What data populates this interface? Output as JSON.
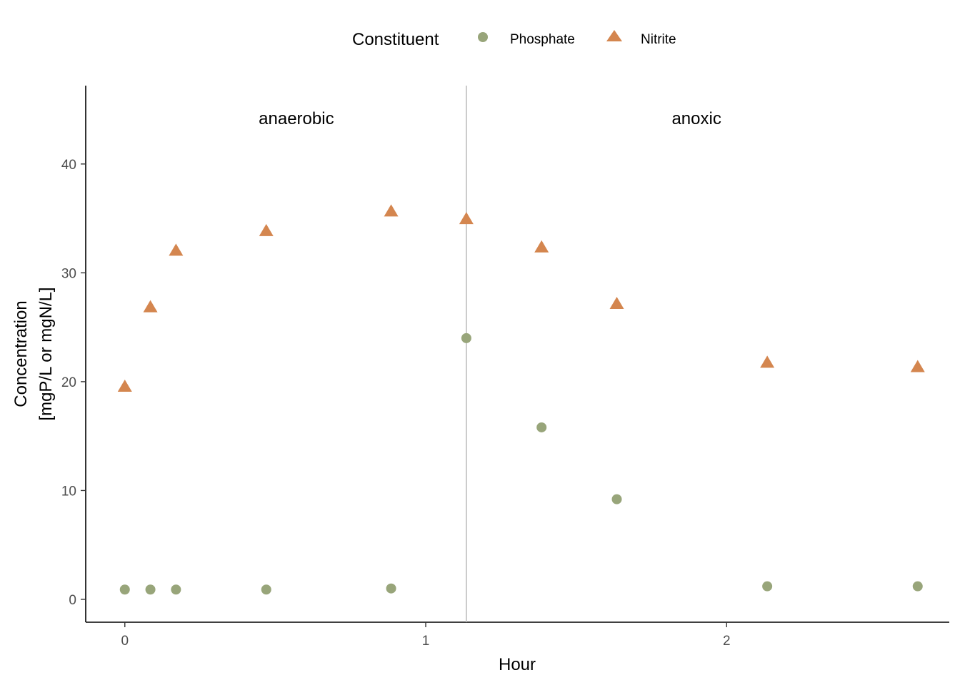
{
  "chart_data": {
    "type": "scatter",
    "title": "",
    "xlabel": "Hour",
    "ylabel_lines": [
      "Concentration",
      "[mgP/L or mgN/L]"
    ],
    "xlim": [
      -0.13,
      2.74
    ],
    "ylim": [
      -2.1,
      47.2
    ],
    "x_ticks": [
      0,
      1,
      2
    ],
    "y_ticks": [
      0,
      10,
      20,
      30,
      40
    ],
    "grid": false,
    "legend": {
      "title": "Constituent",
      "position": "top"
    },
    "vline": {
      "x": 1.135
    },
    "annotations": [
      {
        "text": "anaerobic",
        "x": 0.57,
        "y": 44.2
      },
      {
        "text": "anoxic",
        "x": 1.9,
        "y": 44.2
      }
    ],
    "series": [
      {
        "name": "Phosphate",
        "marker": "circle",
        "color": "#98a57a",
        "x": [
          0,
          0.085,
          0.17,
          0.47,
          0.885,
          1.135,
          1.385,
          1.635,
          2.135,
          2.635
        ],
        "y": [
          0.9,
          0.9,
          0.9,
          0.9,
          1.0,
          24.0,
          15.8,
          9.2,
          1.2,
          1.2
        ]
      },
      {
        "name": "Nitrite",
        "marker": "triangle",
        "color": "#d4864f",
        "x": [
          0,
          0.085,
          0.17,
          0.47,
          0.885,
          1.135,
          1.385,
          1.635,
          2.135,
          2.635
        ],
        "y": [
          19.5,
          26.8,
          32.0,
          33.8,
          35.6,
          34.9,
          32.3,
          27.1,
          21.7,
          21.3
        ]
      }
    ]
  }
}
